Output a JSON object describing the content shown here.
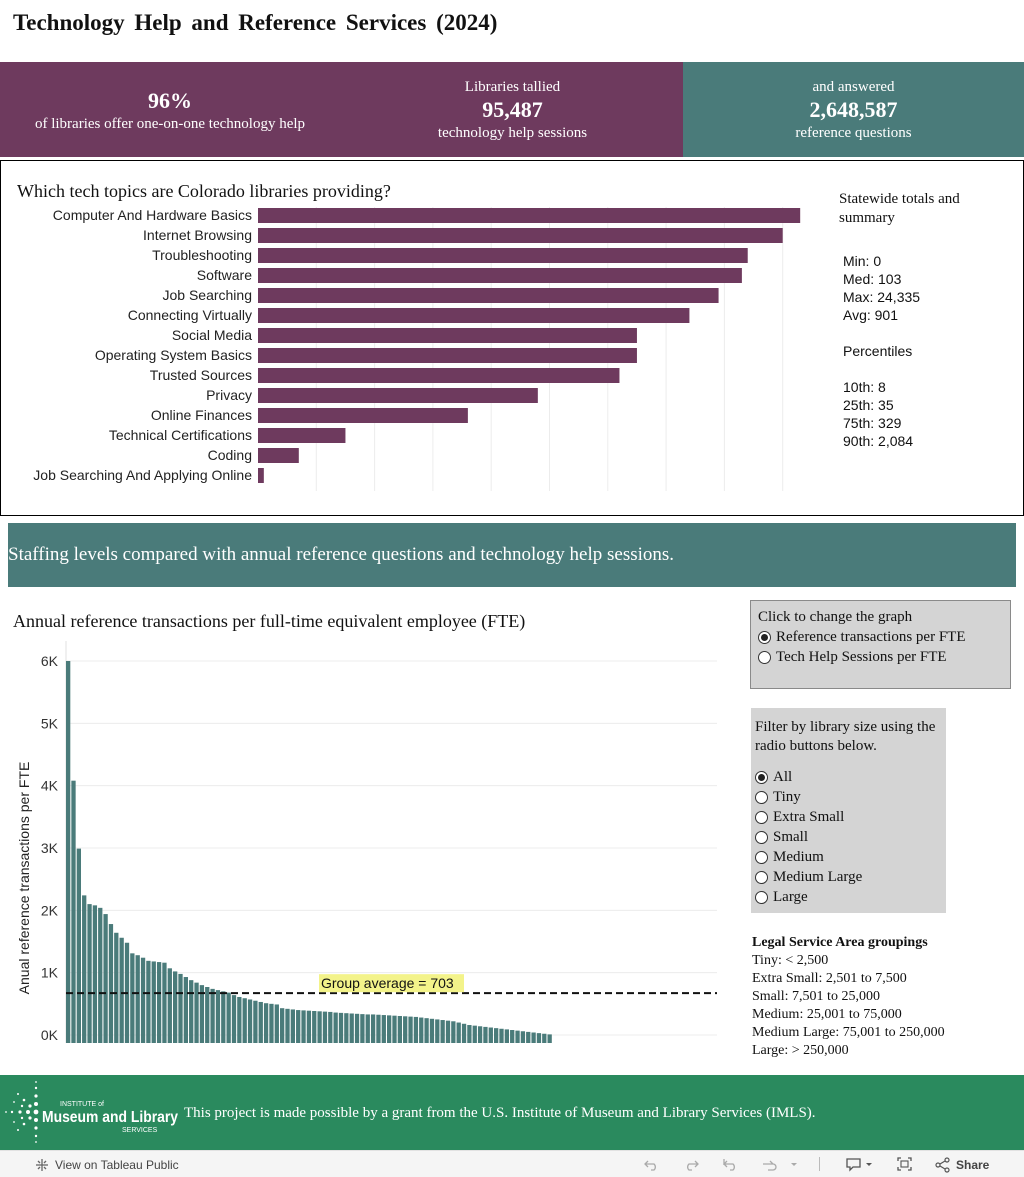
{
  "title": "Technology Help and Reference Services (2024)",
  "kpis": {
    "pct_value": "96%",
    "pct_label": "of libraries offer one-on-one technology help",
    "sessions_pre": "Libraries tallied",
    "sessions_value": "95,487",
    "sessions_label": "technology help sessions",
    "ref_pre": "and answered",
    "ref_value": "2,648,587",
    "ref_label": "reference questions"
  },
  "topics_title": "Which tech topics are Colorado libraries providing?",
  "summary": {
    "heading": "Statewide totals and summary",
    "min": "Min: 0",
    "med": "Med: 103",
    "max": "Max: 24,335",
    "avg": "Avg: 901",
    "percentiles_heading": "Percentiles",
    "p10": "10th: 8",
    "p25": "25th: 35",
    "p75": "75th: 329",
    "p90": "90th: 2,084"
  },
  "staffing_banner": "Staffing levels compared with annual reference questions and technology help sessions.",
  "fte_title": "Annual reference transactions per full-time equivalent employee (FTE)",
  "graph_toggle": {
    "title": "Click to change the graph",
    "options": [
      "Reference transactions per FTE",
      "Tech Help Sessions per FTE"
    ],
    "selected": 0
  },
  "size_filter": {
    "title": "Filter by library size using the radio buttons below.",
    "options": [
      "All",
      "Tiny",
      "Extra Small",
      "Small",
      "Medium",
      "Medium Large",
      "Large"
    ],
    "selected": 0
  },
  "legal_groupings": {
    "heading": "Legal Service Area groupings",
    "rows": [
      "Tiny: < 2,500",
      "Extra Small: 2,501 to 7,500",
      "Small: 7,501 to 25,000",
      "Medium: 25,001 to 75,000",
      "Medium Large: 75,001 to 250,000",
      "Large: > 250,000"
    ]
  },
  "footer": {
    "logo_top": "INSTITUTE of",
    "logo_mid": "Museum and Library",
    "logo_bottom": "SERVICES",
    "text": "This project is made possible by a grant from the U.S. Institute of Museum and Library Services (IMLS)."
  },
  "toolbar": {
    "view_label": "View on Tableau Public",
    "share_label": "Share"
  },
  "colors": {
    "purple": "#6e3a5e",
    "teal": "#4a7b7a",
    "footer_green": "#2a8a5e"
  },
  "chart_data": [
    {
      "type": "bar",
      "orientation": "horizontal",
      "title": "Which tech topics are Colorado libraries providing?",
      "categories": [
        "Computer And Hardware Basics",
        "Internet Browsing",
        "Troubleshooting",
        "Software",
        "Job Searching",
        "Connecting Virtually",
        "Social Media",
        "Operating System Basics",
        "Trusted Sources",
        "Privacy",
        "Online Finances",
        "Technical Certifications",
        "Coding",
        "Job Searching And Applying Online"
      ],
      "values": [
        93,
        90,
        84,
        83,
        79,
        74,
        65,
        65,
        62,
        48,
        36,
        15,
        7,
        1
      ],
      "xlim": [
        0,
        100
      ],
      "grid": true,
      "color": "#6e3a5e"
    },
    {
      "type": "bar",
      "title": "Annual reference transactions per full-time equivalent employee (FTE)",
      "ylabel": "Anual reference transactions per FTE",
      "yticks": [
        "0K",
        "1K",
        "2K",
        "3K",
        "4K",
        "5K",
        "6K"
      ],
      "ylim": [
        0,
        6000
      ],
      "reference_line": {
        "value": 703,
        "label": "Group average = 703"
      },
      "values": [
        6000,
        4080,
        2990,
        2240,
        2100,
        2080,
        2040,
        1940,
        1780,
        1640,
        1560,
        1480,
        1310,
        1280,
        1240,
        1190,
        1180,
        1170,
        1160,
        1070,
        1020,
        980,
        930,
        880,
        840,
        800,
        770,
        740,
        720,
        700,
        680,
        640,
        610,
        590,
        570,
        550,
        530,
        510,
        500,
        490,
        430,
        420,
        410,
        400,
        395,
        390,
        385,
        380,
        375,
        370,
        360,
        355,
        350,
        345,
        340,
        335,
        330,
        330,
        325,
        320,
        315,
        310,
        305,
        300,
        295,
        290,
        280,
        270,
        260,
        250,
        240,
        230,
        220,
        200,
        180,
        160,
        150,
        140,
        130,
        120,
        110,
        100,
        90,
        80,
        70,
        60,
        50,
        40,
        30,
        20,
        10
      ],
      "color": "#4a7b7a",
      "grid": true
    }
  ]
}
